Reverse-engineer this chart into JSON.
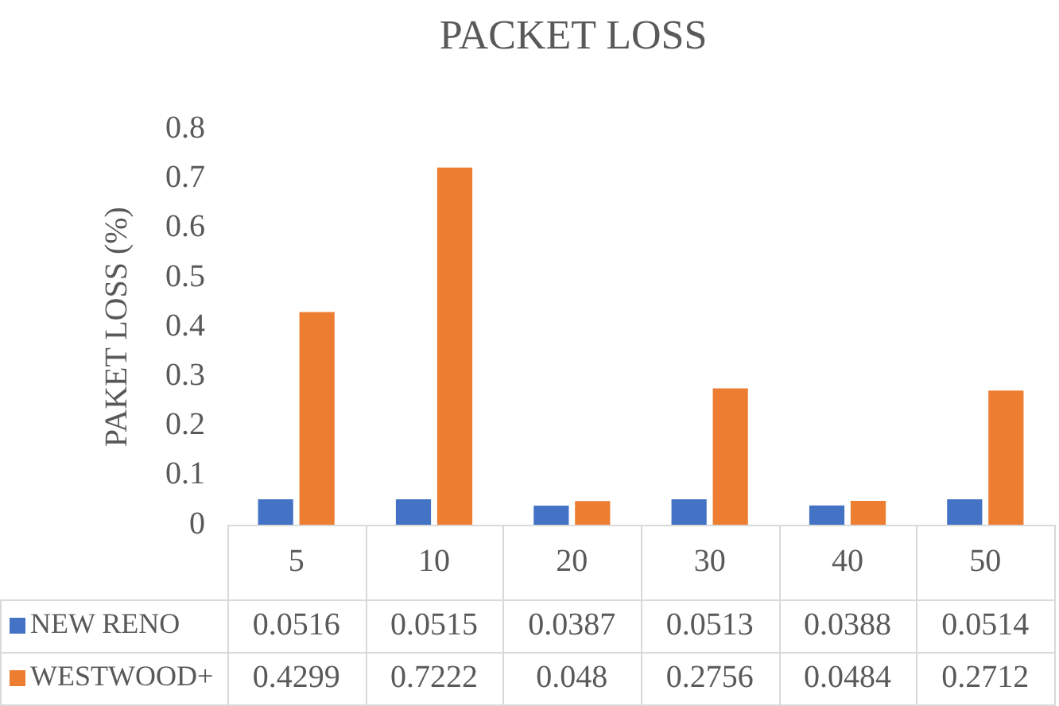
{
  "chart_data": {
    "type": "bar",
    "title": "PACKET LOSS",
    "ylabel": "PAKET LOSS (%)",
    "categories": [
      "5",
      "10",
      "20",
      "30",
      "40",
      "50"
    ],
    "series": [
      {
        "name": "NEW RENO",
        "color": "#4472c4",
        "values": [
          0.0516,
          0.0515,
          0.0387,
          0.0513,
          0.0388,
          0.0514
        ]
      },
      {
        "name": "WESTWOOD+",
        "color": "#ed7d31",
        "values": [
          0.4299,
          0.7222,
          0.048,
          0.2756,
          0.0484,
          0.2712
        ]
      }
    ],
    "ylim": [
      0,
      0.8
    ],
    "yticks": [
      0,
      0.1,
      0.2,
      0.3,
      0.4,
      0.5,
      0.6,
      0.7,
      0.8
    ],
    "grid": false,
    "legend": "bottom",
    "data_labels": true
  }
}
